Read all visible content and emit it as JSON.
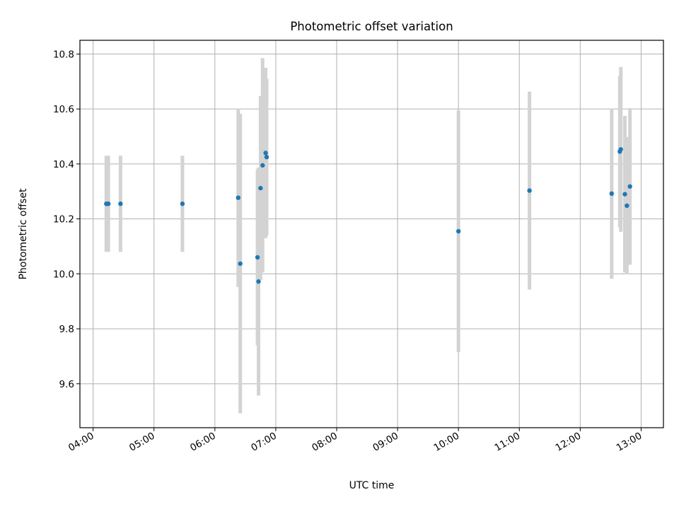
{
  "chart_data": {
    "type": "scatter",
    "title": "Photometric offset variation",
    "xlabel": "UTC time",
    "ylabel": "Photometric offset",
    "x_type": "time",
    "xlim": [
      "03:47",
      "13:22"
    ],
    "ylim": [
      9.44,
      10.85
    ],
    "x_ticks": [
      "04:00",
      "05:00",
      "06:00",
      "07:00",
      "08:00",
      "09:00",
      "10:00",
      "11:00",
      "12:00",
      "13:00"
    ],
    "y_ticks": [
      9.6,
      9.8,
      10.0,
      10.2,
      10.4,
      10.6,
      10.8
    ],
    "grid": true,
    "colors": {
      "points": "#1f77b4",
      "errorbars": "#d3d3d3",
      "grid": "#b0b0b0"
    },
    "series": [
      {
        "points": [
          {
            "x": "04:13",
            "y": 10.255,
            "err": 0.175
          },
          {
            "x": "04:15",
            "y": 10.255,
            "err": 0.175
          },
          {
            "x": "04:27",
            "y": 10.255,
            "err": 0.175
          },
          {
            "x": "05:28",
            "y": 10.255,
            "err": 0.175
          },
          {
            "x": "06:23",
            "y": 10.277,
            "err": 0.325
          },
          {
            "x": "06:25",
            "y": 10.037,
            "err": 0.545
          },
          {
            "x": "06:42",
            "y": 10.06,
            "err": 0.32
          },
          {
            "x": "06:43",
            "y": 9.972,
            "err": 0.415
          },
          {
            "x": "06:45",
            "y": 10.312,
            "err": 0.335
          },
          {
            "x": "06:47",
            "y": 10.395,
            "err": 0.39
          },
          {
            "x": "06:50",
            "y": 10.44,
            "err": 0.31
          },
          {
            "x": "06:51",
            "y": 10.425,
            "err": 0.285
          },
          {
            "x": "10:00",
            "y": 10.155,
            "err": 0.44
          },
          {
            "x": "11:10",
            "y": 10.303,
            "err": 0.36
          },
          {
            "x": "12:31",
            "y": 10.292,
            "err": 0.31
          },
          {
            "x": "12:39",
            "y": 10.445,
            "err": 0.275
          },
          {
            "x": "12:40",
            "y": 10.453,
            "err": 0.3
          },
          {
            "x": "12:44",
            "y": 10.29,
            "err": 0.285
          },
          {
            "x": "12:46",
            "y": 10.248,
            "err": 0.25
          },
          {
            "x": "12:49",
            "y": 10.318,
            "err": 0.285
          }
        ]
      }
    ]
  }
}
